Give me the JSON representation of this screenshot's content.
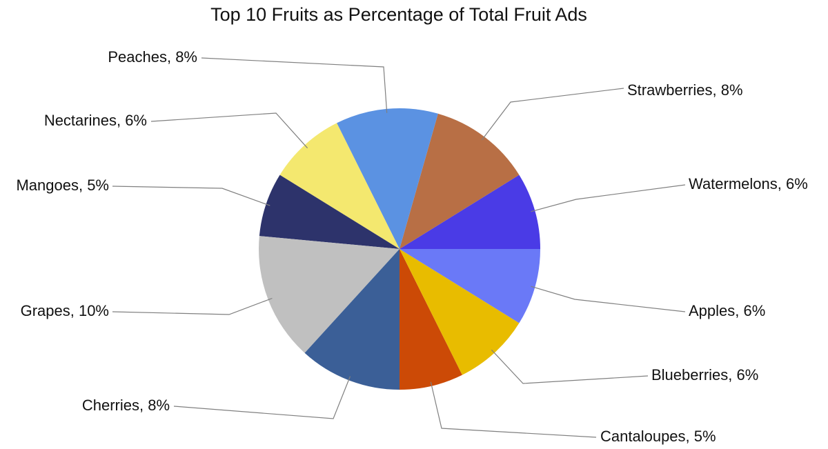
{
  "chart_data": {
    "type": "pie",
    "title": "Top 10 Fruits as Percentage of Total Fruit Ads",
    "slices": [
      {
        "name": "Watermelons",
        "value": 6,
        "label": "Watermelons, 6%",
        "color": "#4a3be6"
      },
      {
        "name": "Strawberries",
        "value": 8,
        "label": "Strawberries, 8%",
        "color": "#b86f45"
      },
      {
        "name": "Peaches",
        "value": 8,
        "label": "Peaches, 8%",
        "color": "#5b92e2"
      },
      {
        "name": "Nectarines",
        "value": 6,
        "label": "Nectarines, 6%",
        "color": "#f4e86f"
      },
      {
        "name": "Mangoes",
        "value": 5,
        "label": "Mangoes, 5%",
        "color": "#2d336b"
      },
      {
        "name": "Grapes",
        "value": 10,
        "label": "Grapes, 10%",
        "color": "#c0c0c0"
      },
      {
        "name": "Cherries",
        "value": 8,
        "label": "Cherries, 8%",
        "color": "#3b5f97"
      },
      {
        "name": "Cantaloupes",
        "value": 5,
        "label": "Cantaloupes, 5%",
        "color": "#cc4a06"
      },
      {
        "name": "Blueberries",
        "value": 6,
        "label": "Blueberries, 6%",
        "color": "#e8bc00"
      },
      {
        "name": "Apples",
        "value": 6,
        "label": "Apples, 6%",
        "color": "#6a79f7"
      }
    ]
  }
}
